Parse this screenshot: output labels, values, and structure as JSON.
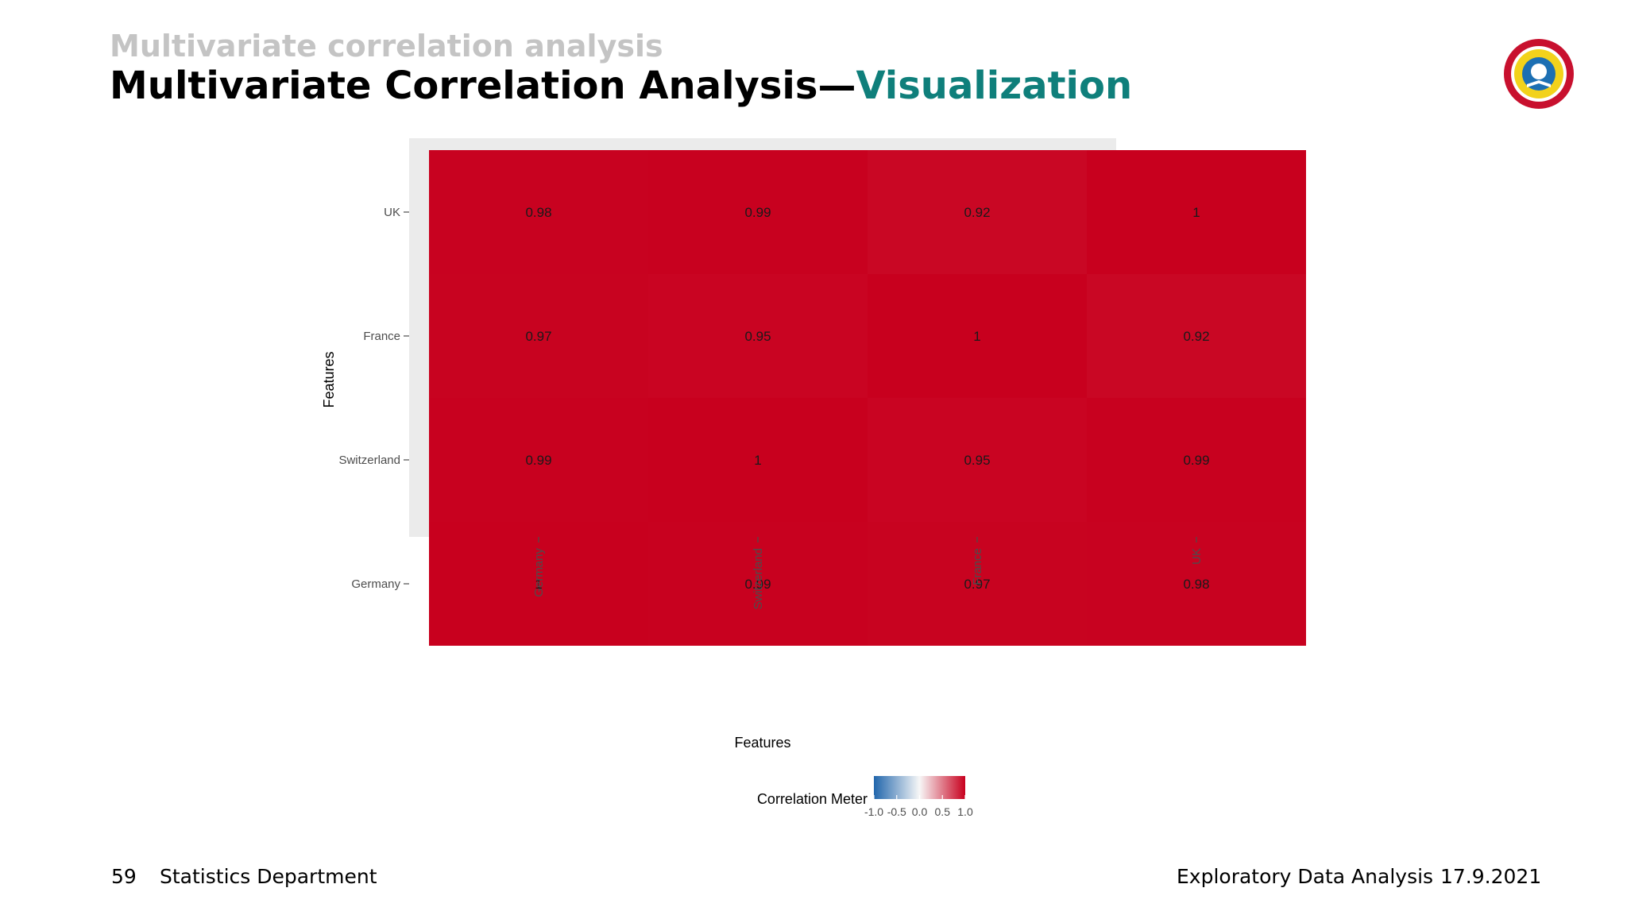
{
  "slide": {
    "section_title": "Multivariate correlation analysis",
    "title_main": "Multivariate Correlation Analysis—",
    "title_accent": "Visualization"
  },
  "footer": {
    "page_number": "59",
    "department": "Statistics Department",
    "course": "Exploratory Data Analysis",
    "date": "17.9.2021"
  },
  "logo": {
    "icon": "university-seal-icon",
    "ring_color": "#c8102e",
    "inner_color": "#f2d21b"
  },
  "chart_data": {
    "type": "heatmap",
    "x_categories": [
      "Germany",
      "Switzerland",
      "France",
      "UK"
    ],
    "y_categories": [
      "Germany",
      "Switzerland",
      "France",
      "UK"
    ],
    "values": [
      [
        1,
        0.99,
        0.97,
        0.98
      ],
      [
        0.99,
        1,
        0.95,
        0.99
      ],
      [
        0.97,
        0.95,
        1,
        0.92
      ],
      [
        0.98,
        0.99,
        0.92,
        1
      ]
    ],
    "xlabel": "Features",
    "ylabel": "Features",
    "legend": {
      "title": "Correlation Meter",
      "position": "bottom",
      "range": [
        -1,
        1
      ],
      "ticks": [
        -1.0,
        -0.5,
        0.0,
        0.5,
        1.0
      ],
      "tick_labels": [
        "-1.0",
        "-0.5",
        "0.0",
        "0.5",
        "1.0"
      ],
      "low_color": "#2166ac",
      "mid_color": "#f7f7f7",
      "high_color": "#c8001e"
    },
    "panel_background": "#ebebeb",
    "grid": true
  }
}
